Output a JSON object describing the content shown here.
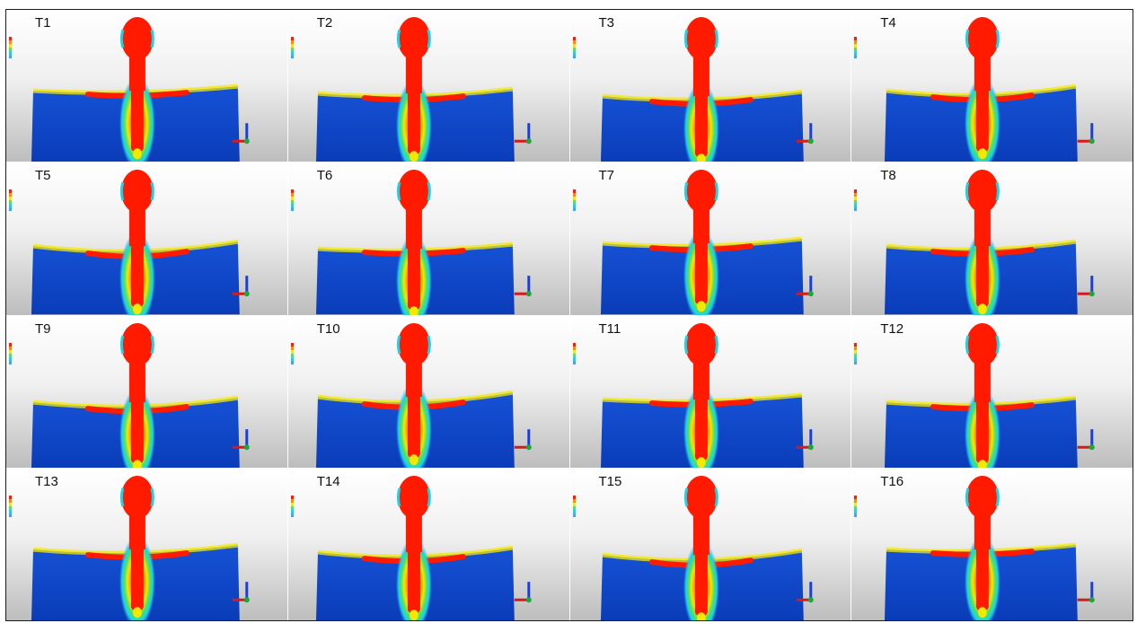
{
  "panels": [
    {
      "label": "T1"
    },
    {
      "label": "T2"
    },
    {
      "label": "T3"
    },
    {
      "label": "T4"
    },
    {
      "label": "T5"
    },
    {
      "label": "T6"
    },
    {
      "label": "T7"
    },
    {
      "label": "T8"
    },
    {
      "label": "T9"
    },
    {
      "label": "T10"
    },
    {
      "label": "T11"
    },
    {
      "label": "T12"
    },
    {
      "label": "T13"
    },
    {
      "label": "T14"
    },
    {
      "label": "T15"
    },
    {
      "label": "T16"
    }
  ],
  "colors": {
    "high_stress": "#ff1a00",
    "orange": "#ff8a00",
    "yellow": "#f4e800",
    "green": "#4ee06a",
    "cyan": "#16d4e8",
    "light_blue": "#39a8f0",
    "bone_blue": "#1652d6",
    "deep_blue": "#0a3cb8",
    "background_top": "#ffffff",
    "background_bottom": "#bdbdbd"
  },
  "legend_icon": "stress-color-scale-icon",
  "axis_icon": "xyz-axis-triad-icon"
}
